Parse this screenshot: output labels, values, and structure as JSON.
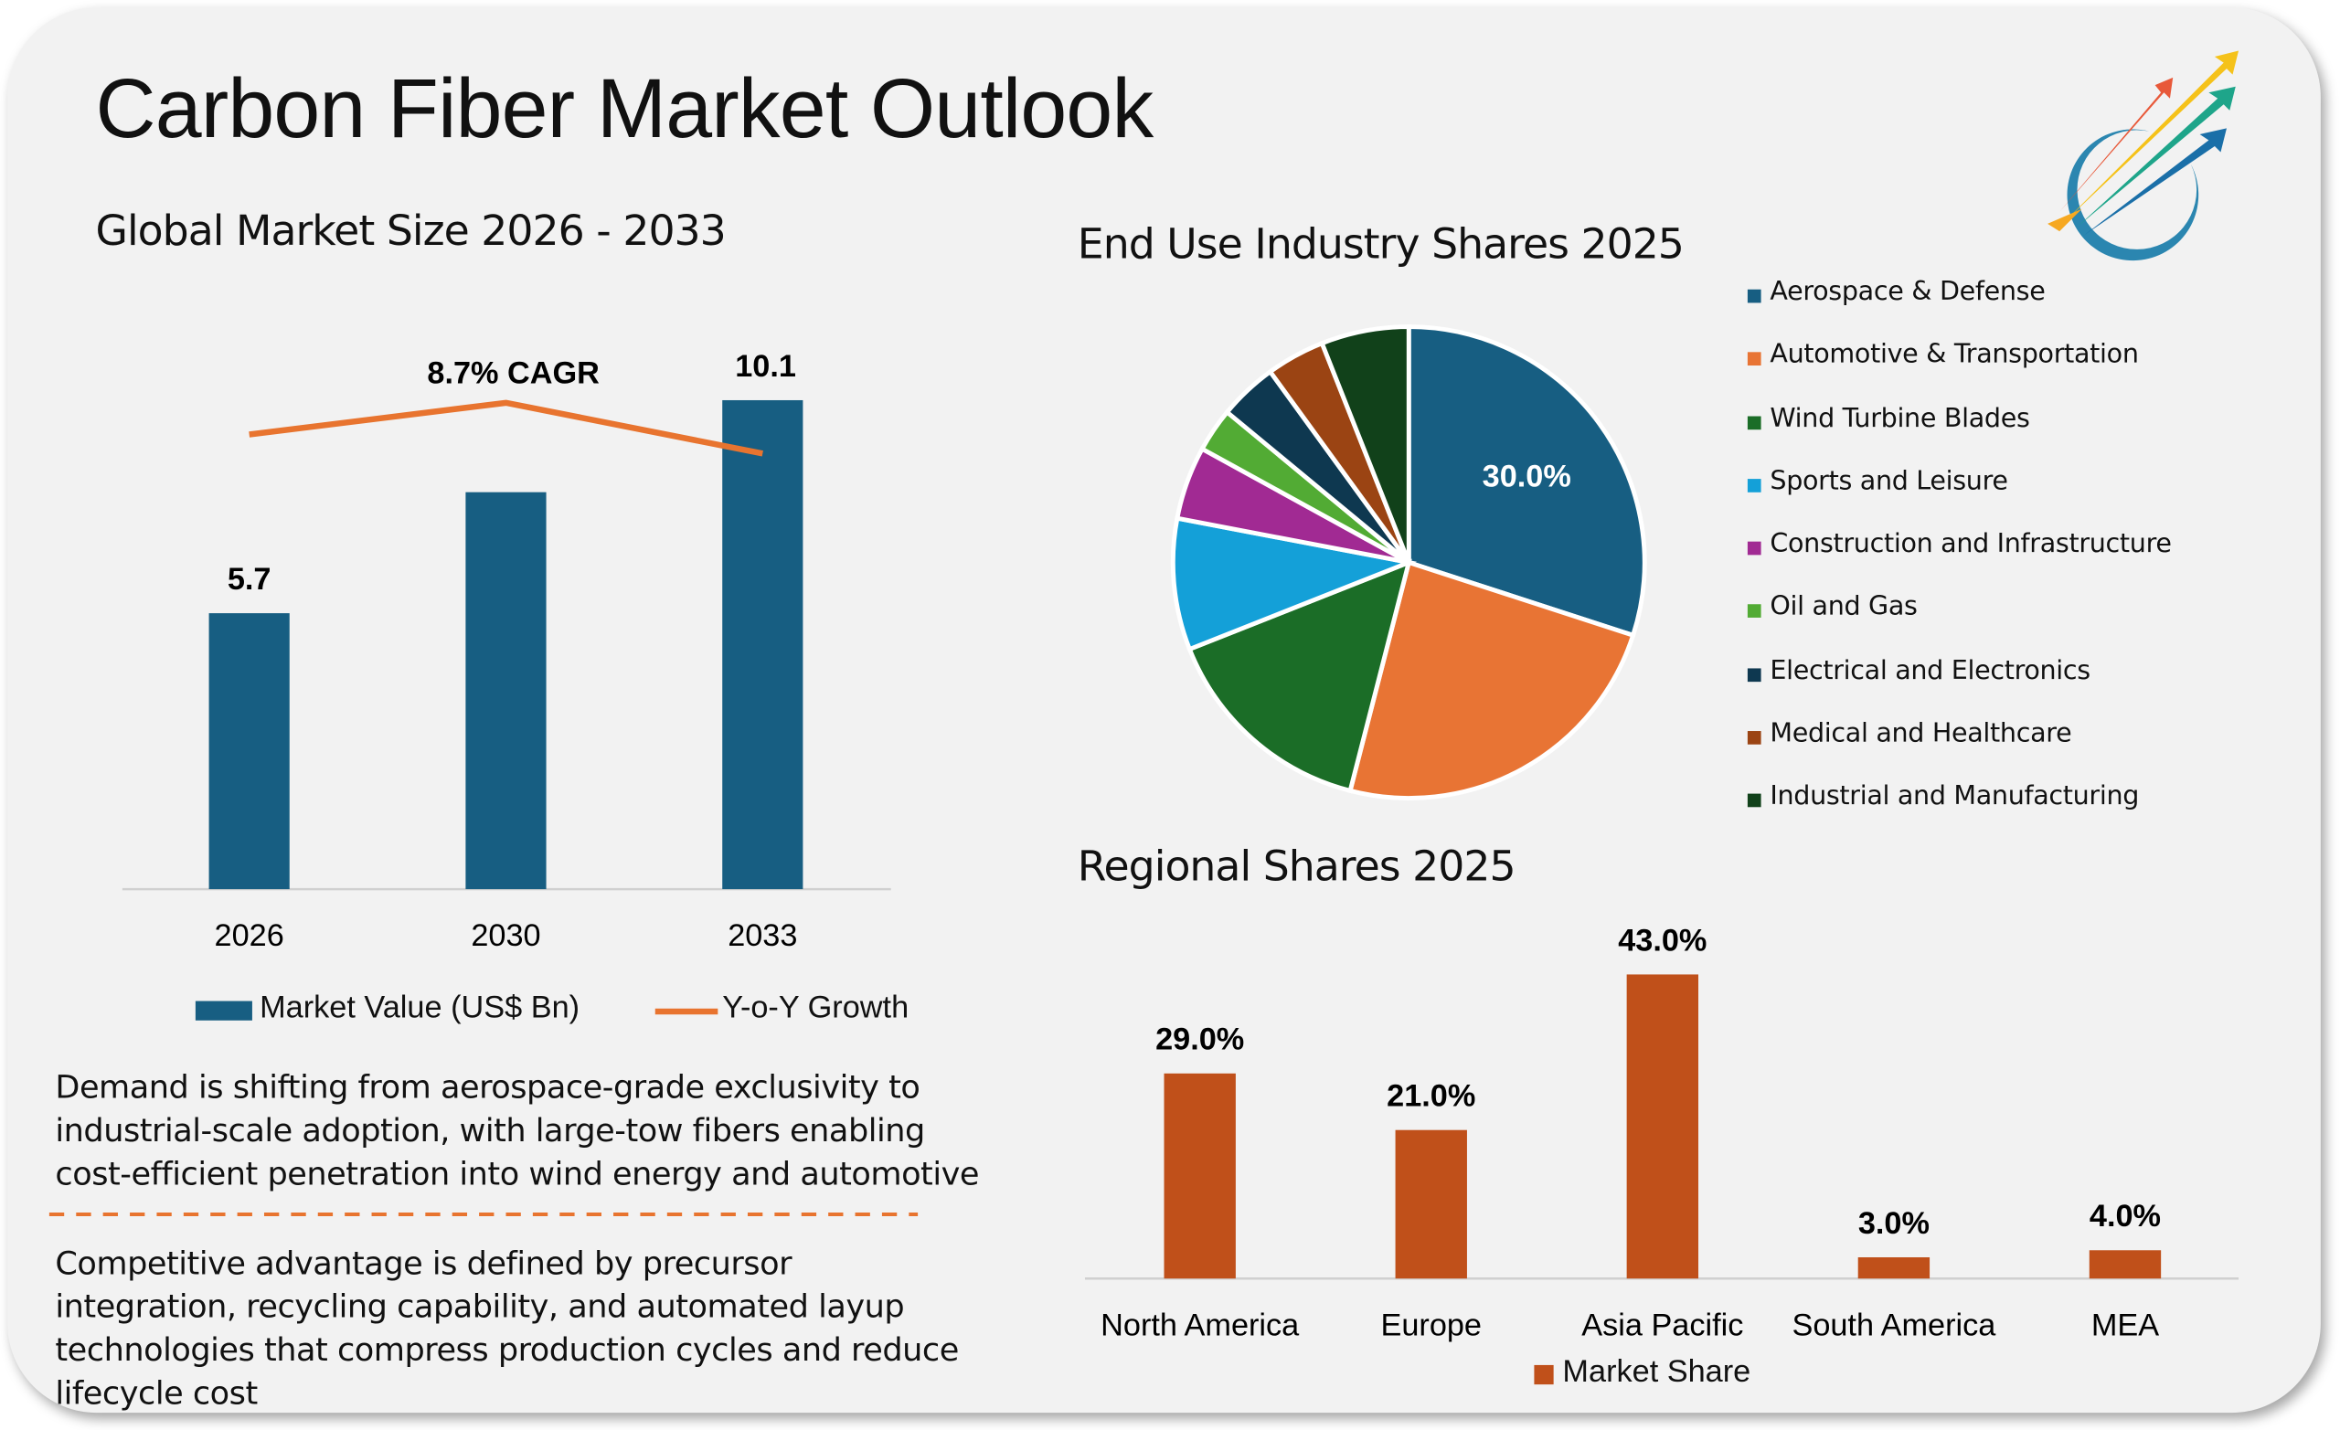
{
  "header": {
    "title": "Carbon Fiber Market Outlook",
    "logo": "rising-arrows-logo"
  },
  "colors": {
    "market_value": "#175e82",
    "yoy_growth": "#e8742f",
    "regional_bar": "#c0501a",
    "background": "#f2f2f2"
  },
  "chart_data": [
    {
      "type": "bar",
      "title": "Global Market Size 2026 - 2033",
      "categories": [
        "2026",
        "2030",
        "2033"
      ],
      "series": [
        {
          "name": "Market Value (US$ Bn)",
          "type": "bar",
          "values": [
            5.7,
            8.2,
            10.1
          ],
          "data_labels": [
            "5.7",
            "",
            "10.1"
          ]
        },
        {
          "name": "Y-o-Y Growth",
          "type": "line",
          "values": [
            8.5,
            9.0,
            8.2
          ]
        }
      ],
      "annotation": "8.7% CAGR",
      "ylim": [
        0,
        11
      ],
      "grid": false,
      "legend": "bottom"
    },
    {
      "type": "pie",
      "title": "End Use Industry Shares 2025",
      "labels": [
        "Aerospace & Defense",
        "Automotive & Transportation",
        "Wind Turbine Blades",
        "Sports and Leisure",
        "Construction and Infrastructure",
        "Oil and Gas",
        "Electrical and Electronics",
        "Medical and Healthcare",
        "Industrial and Manufacturing"
      ],
      "values": [
        30,
        24,
        15,
        9,
        5,
        3,
        4,
        4,
        6
      ],
      "colors": [
        "#175e82",
        "#e87434",
        "#1b6d27",
        "#14a0d8",
        "#a12a93",
        "#52ab34",
        "#0e3850",
        "#9b4413",
        "#11411a"
      ],
      "data_label": "30.0%",
      "legend": "right"
    },
    {
      "type": "bar",
      "title": "Regional Shares 2025",
      "categories": [
        "North America",
        "Europe",
        "Asia Pacific",
        "South America",
        "MEA"
      ],
      "series": [
        {
          "name": "Market Share",
          "values": [
            29.0,
            21.0,
            43.0,
            3.0,
            4.0
          ],
          "data_labels": [
            "29.0%",
            "21.0%",
            "43.0%",
            "3.0%",
            "4.0%"
          ]
        }
      ],
      "ylim": [
        0,
        45
      ],
      "grid": false,
      "legend": "bottom"
    }
  ],
  "insights": [
    "Demand is shifting from aerospace-grade exclusivity to industrial-scale adoption, with large-tow fibers enabling cost-efficient penetration into wind energy and automotive",
    "Competitive advantage is defined by precursor integration, recycling capability, and automated layup technologies that compress production cycles and reduce lifecycle cost"
  ]
}
